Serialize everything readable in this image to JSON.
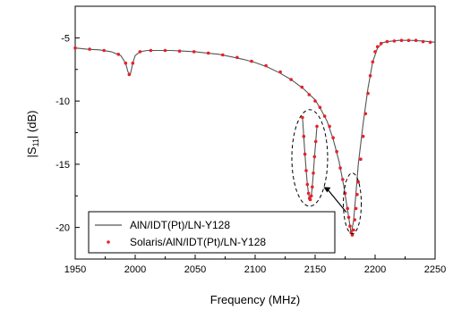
{
  "chart_data": {
    "type": "line",
    "xlabel": "Frequency (MHz)",
    "ylabel_main": "|S",
    "ylabel_sub": "11",
    "ylabel_tail": "| (dB)",
    "xlim": [
      1950,
      2250
    ],
    "ylim": [
      -22.5,
      -2.5
    ],
    "xticks": [
      1950,
      2000,
      2050,
      2100,
      2150,
      2200,
      2250
    ],
    "yticks": [
      -5,
      -10,
      -15,
      -20
    ],
    "legend_placement": "bottom-left",
    "series": [
      {
        "name": "AlN/IDT(Pt)/LN-Y128",
        "style": "line",
        "color": "#555555",
        "x": [
          1950,
          1960,
          1970,
          1980,
          1988,
          1992,
          1994,
          1996,
          1998,
          2000,
          2004,
          2010,
          2020,
          2030,
          2040,
          2050,
          2060,
          2070,
          2080,
          2090,
          2100,
          2110,
          2120,
          2130,
          2140,
          2150,
          2155,
          2160,
          2165,
          2170,
          2174,
          2178,
          2180,
          2182,
          2184,
          2186,
          2190,
          2194,
          2198,
          2202,
          2206,
          2210,
          2220,
          2230,
          2240,
          2250
        ],
        "y": [
          -5.8,
          -5.9,
          -5.95,
          -6.1,
          -6.4,
          -7.0,
          -7.7,
          -7.9,
          -7.0,
          -6.4,
          -6.1,
          -6.0,
          -6.0,
          -6.0,
          -6.05,
          -6.1,
          -6.2,
          -6.3,
          -6.5,
          -6.7,
          -6.95,
          -7.3,
          -7.75,
          -8.3,
          -9.0,
          -9.9,
          -10.7,
          -11.6,
          -13.0,
          -14.8,
          -16.8,
          -19.2,
          -20.5,
          -19.5,
          -17.3,
          -15.0,
          -11.8,
          -9.0,
          -6.9,
          -5.8,
          -5.4,
          -5.3,
          -5.2,
          -5.2,
          -5.25,
          -5.35
        ]
      },
      {
        "name": "Solaris/AlN/IDT(Pt)/LN-Y128",
        "style": "markers",
        "color": "#e8202a",
        "x": [
          1950,
          1962,
          1974,
          1986,
          1992,
          1995,
          1998,
          2004,
          2013,
          2025,
          2037,
          2049,
          2061,
          2073,
          2085,
          2097,
          2109,
          2121,
          2130,
          2139,
          2145,
          2150,
          2154,
          2158,
          2162,
          2165,
          2168,
          2171,
          2173,
          2175,
          2177,
          2178,
          2179,
          2180,
          2181,
          2182,
          2183,
          2184,
          2185,
          2186,
          2188,
          2190,
          2192,
          2194,
          2196,
          2198,
          2200,
          2202,
          2205,
          2210,
          2216,
          2222,
          2228,
          2234,
          2240,
          2246
        ],
        "y": [
          -5.8,
          -5.9,
          -6.0,
          -6.3,
          -7.0,
          -7.9,
          -7.0,
          -6.1,
          -6.0,
          -6.0,
          -6.05,
          -6.1,
          -6.2,
          -6.35,
          -6.55,
          -6.85,
          -7.2,
          -7.7,
          -8.3,
          -8.9,
          -9.5,
          -10.0,
          -10.5,
          -11.2,
          -12.0,
          -12.9,
          -14.0,
          -15.3,
          -16.2,
          -17.3,
          -18.5,
          -19.2,
          -19.9,
          -20.4,
          -20.6,
          -20.2,
          -19.4,
          -18.5,
          -17.4,
          -16.4,
          -14.6,
          -12.8,
          -11.0,
          -9.4,
          -8.0,
          -6.9,
          -6.1,
          -5.7,
          -5.45,
          -5.3,
          -5.25,
          -5.2,
          -5.2,
          -5.2,
          -5.3,
          -5.35
        ]
      }
    ],
    "zoom_inset": {
      "x": [
        2139.5,
        2140.5,
        2141.5,
        2142.5,
        2143.5,
        2144.5,
        2145.3,
        2146.0,
        2146.8,
        2147.6,
        2148.5,
        2149.5,
        2150.5,
        2151.5
      ],
      "y": [
        -11.3,
        -12.8,
        -14.2,
        -15.5,
        -16.6,
        -17.3,
        -17.7,
        -17.8,
        -17.5,
        -16.8,
        -15.7,
        -14.4,
        -13.2,
        -12.0
      ]
    }
  }
}
